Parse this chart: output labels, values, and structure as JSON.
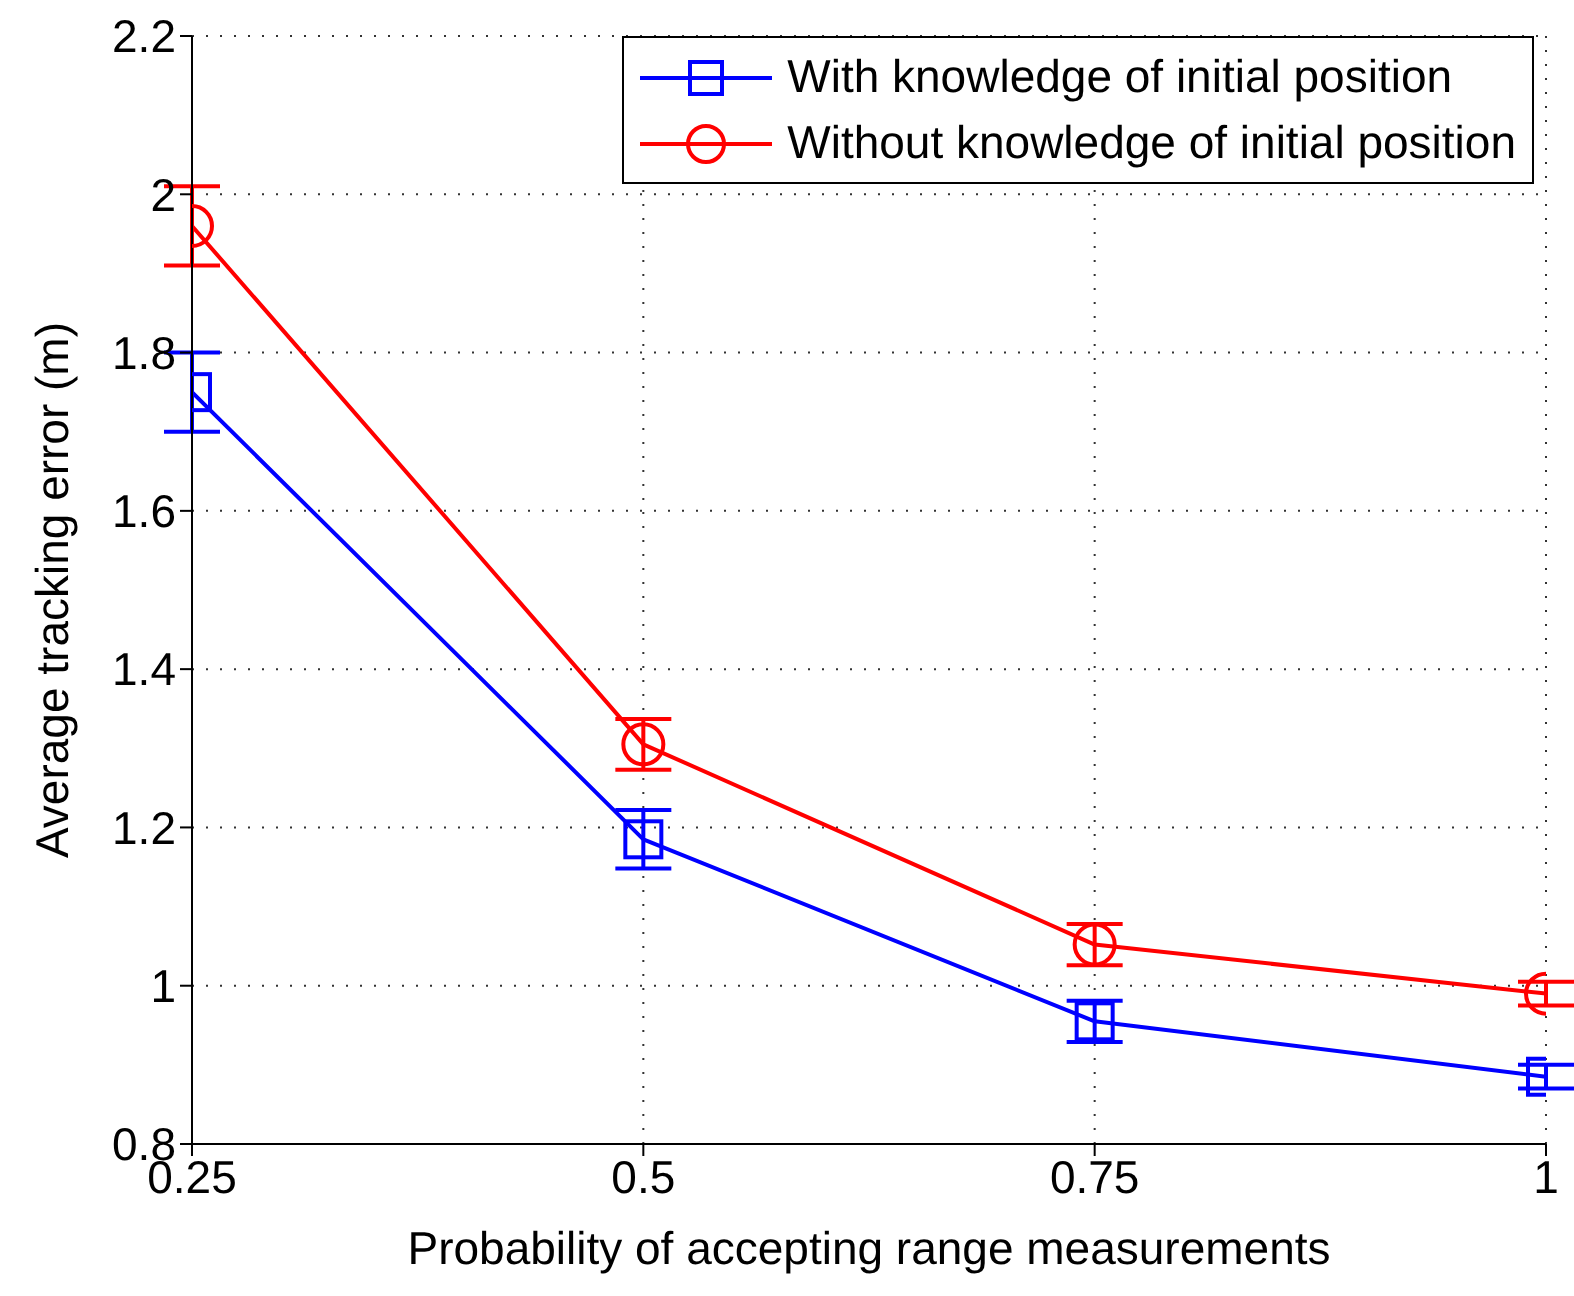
{
  "chart_data": {
    "type": "line",
    "xlabel": "Probability of accepting range measurements",
    "ylabel": "Average tracking error (m)",
    "x": [
      0.25,
      0.5,
      0.75,
      1
    ],
    "series": [
      {
        "name": "With knowledge of initial position",
        "color": "#0000ff",
        "marker": "square",
        "values": [
          1.75,
          1.185,
          0.955,
          0.885
        ],
        "errors": [
          0.05,
          0.037,
          0.026,
          0.015
        ]
      },
      {
        "name": "Without knowledge of initial position",
        "color": "#ff0000",
        "marker": "circle",
        "values": [
          1.96,
          1.305,
          1.052,
          0.99
        ],
        "errors": [
          0.05,
          0.032,
          0.026,
          0.015
        ]
      }
    ],
    "xlim": [
      0.25,
      1
    ],
    "xticks": [
      0.25,
      0.5,
      0.75,
      1
    ],
    "ylim": [
      0.8,
      2.2
    ],
    "yticks": [
      0.8,
      1,
      1.2,
      1.4,
      1.6,
      1.8,
      2,
      2.2
    ],
    "grid": true,
    "legend": "top right",
    "line_style": "solid"
  }
}
